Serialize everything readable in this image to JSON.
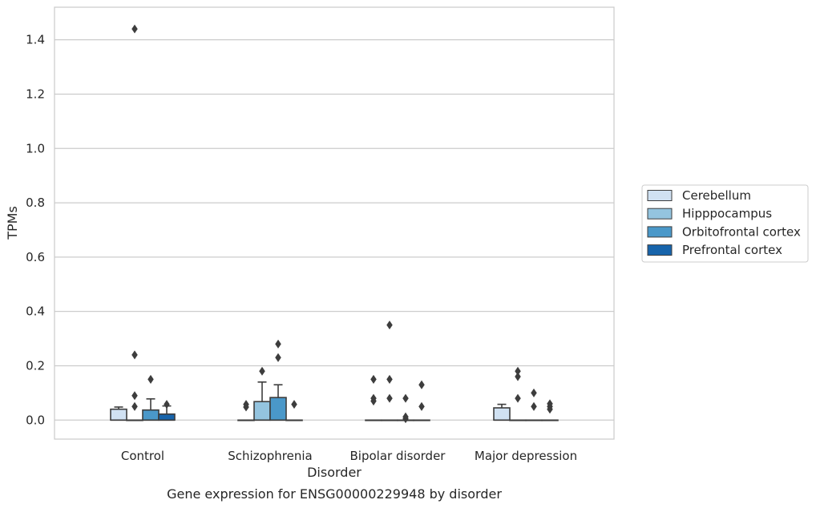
{
  "chart_data": {
    "type": "box",
    "title": "",
    "caption": "Gene expression for ENSG00000229948 by disorder",
    "xlabel": "Disorder",
    "ylabel": "TPMs",
    "ylim": [
      -0.07,
      1.52
    ],
    "yticks": [
      0.0,
      0.2,
      0.4,
      0.6,
      0.8,
      1.0,
      1.2,
      1.4
    ],
    "ytick_labels": [
      "0.0",
      "0.2",
      "0.4",
      "0.6",
      "0.8",
      "1.0",
      "1.2",
      "1.4"
    ],
    "grid": "horizontal",
    "legend_position": "right",
    "categories": [
      "Control",
      "Schizophrenia",
      "Bipolar disorder",
      "Major depression"
    ],
    "series": [
      {
        "name": "Cerebellum",
        "color": "#d0e1f2",
        "boxes": [
          {
            "q1": 0.0,
            "median": 0.0,
            "q3": 0.04,
            "whisker_low": 0.0,
            "whisker_high": 0.048,
            "outliers": []
          },
          {
            "q1": 0.0,
            "median": 0.0,
            "q3": 0.0,
            "whisker_low": 0.0,
            "whisker_high": 0.0,
            "outliers": [
              0.048,
              0.058
            ]
          },
          {
            "q1": 0.0,
            "median": 0.0,
            "q3": 0.0,
            "whisker_low": 0.0,
            "whisker_high": 0.0,
            "outliers": [
              0.07,
              0.08,
              0.15
            ]
          },
          {
            "q1": 0.0,
            "median": 0.0,
            "q3": 0.045,
            "whisker_low": 0.0,
            "whisker_high": 0.058,
            "outliers": []
          }
        ]
      },
      {
        "name": "Hipppocampus",
        "color": "#94c4df",
        "boxes": [
          {
            "q1": 0.0,
            "median": 0.0,
            "q3": 0.0,
            "whisker_low": 0.0,
            "whisker_high": 0.0,
            "outliers": [
              0.05,
              0.09,
              0.24,
              1.44
            ]
          },
          {
            "q1": 0.0,
            "median": 0.0,
            "q3": 0.068,
            "whisker_low": 0.0,
            "whisker_high": 0.14,
            "outliers": [
              0.18
            ]
          },
          {
            "q1": 0.0,
            "median": 0.0,
            "q3": 0.0,
            "whisker_low": 0.0,
            "whisker_high": 0.0,
            "outliers": [
              0.08,
              0.15,
              0.35
            ]
          },
          {
            "q1": 0.0,
            "median": 0.0,
            "q3": 0.0,
            "whisker_low": 0.0,
            "whisker_high": 0.0,
            "outliers": [
              0.08,
              0.16,
              0.18
            ]
          }
        ]
      },
      {
        "name": "Orbitofrontal cortex",
        "color": "#4a98c9",
        "boxes": [
          {
            "q1": 0.0,
            "median": 0.0,
            "q3": 0.037,
            "whisker_low": 0.0,
            "whisker_high": 0.078,
            "outliers": [
              0.15
            ]
          },
          {
            "q1": 0.0,
            "median": 0.0,
            "q3": 0.083,
            "whisker_low": 0.0,
            "whisker_high": 0.13,
            "outliers": [
              0.23,
              0.28
            ]
          },
          {
            "q1": 0.0,
            "median": 0.0,
            "q3": 0.0,
            "whisker_low": 0.0,
            "whisker_high": 0.0,
            "outliers": [
              0.005,
              0.012,
              0.08
            ]
          },
          {
            "q1": 0.0,
            "median": 0.0,
            "q3": 0.0,
            "whisker_low": 0.0,
            "whisker_high": 0.0,
            "outliers": [
              0.05,
              0.1
            ]
          }
        ]
      },
      {
        "name": "Prefrontal cortex",
        "color": "#1764ab",
        "boxes": [
          {
            "q1": 0.0,
            "median": 0.0,
            "q3": 0.022,
            "whisker_low": 0.0,
            "whisker_high": 0.052,
            "outliers": [
              0.058
            ]
          },
          {
            "q1": 0.0,
            "median": 0.0,
            "q3": 0.0,
            "whisker_low": 0.0,
            "whisker_high": 0.0,
            "outliers": [
              0.058
            ]
          },
          {
            "q1": 0.0,
            "median": 0.0,
            "q3": 0.0,
            "whisker_low": 0.0,
            "whisker_high": 0.0,
            "outliers": [
              0.05,
              0.13
            ]
          },
          {
            "q1": 0.0,
            "median": 0.0,
            "q3": 0.0,
            "whisker_low": 0.0,
            "whisker_high": 0.0,
            "outliers": [
              0.04,
              0.05,
              0.06
            ]
          }
        ]
      }
    ]
  }
}
